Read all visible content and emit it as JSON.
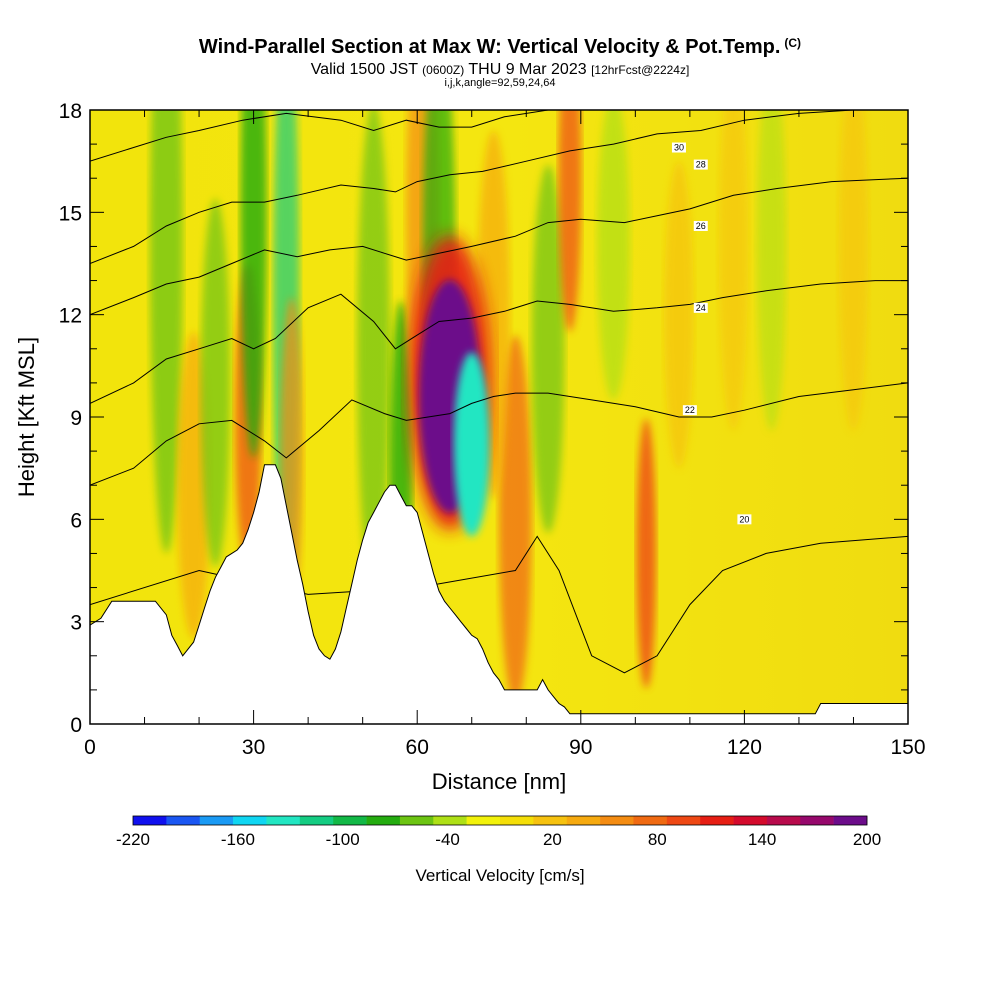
{
  "header": {
    "title": "Wind-Parallel Section at Max W: Vertical Velocity & Pot.Temp.",
    "title_mark": "(C)",
    "valid_main_a": "Valid 1500 JST",
    "valid_small_a": "(0600Z)",
    "valid_main_b": "THU 9 Mar 2023",
    "valid_small_b": "[12hrFcst@2224z]",
    "indices": "i,j,k,angle=92,59,24,64"
  },
  "chart_data": {
    "type": "heatmap",
    "xlabel": "Distance [nm]",
    "ylabel": "Height [Kft MSL]",
    "xlim": [
      0,
      150
    ],
    "ylim": [
      0,
      18
    ],
    "xticks": [
      0,
      30,
      60,
      90,
      120,
      150
    ],
    "yticks": [
      0,
      3,
      6,
      9,
      12,
      15,
      18
    ],
    "grid": false,
    "colorbar": {
      "label": "Vertical Velocity [cm/s]",
      "range": [
        -220,
        200
      ],
      "tick_labels": [
        "-220",
        "-160",
        "-100",
        "-40",
        "20",
        "80",
        "140",
        "200"
      ],
      "colors": [
        "#1010ee",
        "#1a56f2",
        "#1a9af4",
        "#10d6f2",
        "#22e6c2",
        "#14cc82",
        "#12b846",
        "#24ac10",
        "#6cc412",
        "#aee016",
        "#f2f20a",
        "#f4de08",
        "#f6c210",
        "#f6aa10",
        "#f48c12",
        "#f06a12",
        "#ee4814",
        "#e61e14",
        "#d40a2c",
        "#b80a4c",
        "#96086c",
        "#6c0c8a"
      ]
    },
    "terrain": [
      [
        0,
        2.9
      ],
      [
        2,
        3.1
      ],
      [
        4,
        3.6
      ],
      [
        8,
        3.6
      ],
      [
        12,
        3.6
      ],
      [
        14,
        3.2
      ],
      [
        15,
        2.6
      ],
      [
        16,
        2.3
      ],
      [
        17,
        2.0
      ],
      [
        19,
        2.4
      ],
      [
        20,
        2.9
      ],
      [
        21,
        3.4
      ],
      [
        22,
        3.9
      ],
      [
        23,
        4.3
      ],
      [
        24,
        4.6
      ],
      [
        25,
        4.9
      ],
      [
        27,
        5.1
      ],
      [
        28,
        5.3
      ],
      [
        29,
        5.7
      ],
      [
        30,
        6.2
      ],
      [
        31,
        6.8
      ],
      [
        32,
        7.6
      ],
      [
        34,
        7.6
      ],
      [
        35,
        7.2
      ],
      [
        36,
        6.4
      ],
      [
        37,
        5.6
      ],
      [
        38,
        4.8
      ],
      [
        39,
        4.1
      ],
      [
        40,
        3.3
      ],
      [
        41,
        2.6
      ],
      [
        42,
        2.2
      ],
      [
        43,
        2.0
      ],
      [
        44,
        1.9
      ],
      [
        45,
        2.2
      ],
      [
        46,
        2.7
      ],
      [
        47,
        3.4
      ],
      [
        48,
        4.1
      ],
      [
        49,
        4.8
      ],
      [
        50,
        5.4
      ],
      [
        51,
        5.9
      ],
      [
        52,
        6.2
      ],
      [
        53,
        6.5
      ],
      [
        54,
        6.8
      ],
      [
        55,
        7.0
      ],
      [
        56,
        7.0
      ],
      [
        57,
        6.7
      ],
      [
        58,
        6.4
      ],
      [
        59,
        6.4
      ],
      [
        60,
        6.2
      ],
      [
        61,
        5.6
      ],
      [
        62,
        5.0
      ],
      [
        63,
        4.4
      ],
      [
        64,
        3.9
      ],
      [
        65,
        3.6
      ],
      [
        66,
        3.4
      ],
      [
        67,
        3.2
      ],
      [
        68,
        3.0
      ],
      [
        69,
        2.8
      ],
      [
        70,
        2.6
      ],
      [
        71,
        2.5
      ],
      [
        72,
        2.2
      ],
      [
        73,
        1.8
      ],
      [
        74,
        1.5
      ],
      [
        75,
        1.3
      ],
      [
        76,
        1.0
      ],
      [
        80,
        1.0
      ],
      [
        82,
        1.0
      ],
      [
        83,
        1.3
      ],
      [
        84,
        1.0
      ],
      [
        85,
        0.8
      ],
      [
        86,
        0.6
      ],
      [
        87,
        0.5
      ],
      [
        88,
        0.3
      ],
      [
        100,
        0.3
      ],
      [
        133,
        0.3
      ],
      [
        134,
        0.6
      ],
      [
        150,
        0.6
      ]
    ],
    "isentropes": [
      {
        "label": "20",
        "pts": [
          [
            0,
            3.5
          ],
          [
            20,
            4.5
          ],
          [
            40,
            3.8
          ],
          [
            60,
            4.0
          ],
          [
            78,
            4.5
          ],
          [
            82,
            5.5
          ],
          [
            86,
            4.5
          ],
          [
            92,
            2.0
          ],
          [
            98,
            1.5
          ],
          [
            104,
            2.0
          ],
          [
            110,
            3.5
          ],
          [
            116,
            4.5
          ],
          [
            124,
            5.0
          ],
          [
            134,
            5.3
          ],
          [
            150,
            5.5
          ]
        ],
        "label_at": [
          120,
          6.0
        ]
      },
      {
        "label": "22",
        "pts": [
          [
            0,
            7.0
          ],
          [
            8,
            7.5
          ],
          [
            14,
            8.3
          ],
          [
            20,
            8.8
          ],
          [
            26,
            8.9
          ],
          [
            32,
            8.3
          ],
          [
            36,
            7.8
          ],
          [
            42,
            8.6
          ],
          [
            48,
            9.5
          ],
          [
            54,
            9.1
          ],
          [
            58,
            8.9
          ],
          [
            62,
            9.0
          ],
          [
            66,
            9.1
          ],
          [
            70,
            9.4
          ],
          [
            74,
            9.6
          ],
          [
            78,
            9.7
          ],
          [
            84,
            9.7
          ],
          [
            92,
            9.5
          ],
          [
            100,
            9.3
          ],
          [
            108,
            9.0
          ],
          [
            114,
            9.0
          ],
          [
            120,
            9.2
          ],
          [
            130,
            9.6
          ],
          [
            140,
            9.8
          ],
          [
            150,
            10.0
          ]
        ],
        "label_at": [
          110,
          9.2
        ]
      },
      {
        "label": "24",
        "pts": [
          [
            0,
            9.4
          ],
          [
            8,
            10.0
          ],
          [
            14,
            10.7
          ],
          [
            20,
            11.0
          ],
          [
            26,
            11.3
          ],
          [
            30,
            11.0
          ],
          [
            34,
            11.3
          ],
          [
            40,
            12.2
          ],
          [
            46,
            12.6
          ],
          [
            52,
            11.8
          ],
          [
            56,
            11.0
          ],
          [
            60,
            11.4
          ],
          [
            64,
            11.8
          ],
          [
            70,
            11.9
          ],
          [
            76,
            12.1
          ],
          [
            82,
            12.4
          ],
          [
            88,
            12.3
          ],
          [
            96,
            12.1
          ],
          [
            104,
            12.2
          ],
          [
            110,
            12.3
          ],
          [
            116,
            12.5
          ],
          [
            124,
            12.7
          ],
          [
            134,
            12.9
          ],
          [
            144,
            13.0
          ],
          [
            150,
            13.0
          ]
        ],
        "label_at": [
          112,
          12.2
        ]
      },
      {
        "label": "26",
        "pts": [
          [
            0,
            12.0
          ],
          [
            8,
            12.5
          ],
          [
            14,
            12.9
          ],
          [
            20,
            13.1
          ],
          [
            26,
            13.5
          ],
          [
            32,
            13.9
          ],
          [
            38,
            13.7
          ],
          [
            44,
            13.9
          ],
          [
            50,
            14.0
          ],
          [
            54,
            13.8
          ],
          [
            58,
            13.6
          ],
          [
            64,
            13.8
          ],
          [
            70,
            14.0
          ],
          [
            78,
            14.3
          ],
          [
            84,
            14.7
          ],
          [
            90,
            14.8
          ],
          [
            98,
            14.7
          ],
          [
            104,
            14.9
          ],
          [
            110,
            15.1
          ],
          [
            118,
            15.5
          ],
          [
            126,
            15.7
          ],
          [
            136,
            15.9
          ],
          [
            150,
            16.0
          ]
        ],
        "label_at": [
          112,
          14.6
        ]
      },
      {
        "label": "28",
        "pts": [
          [
            0,
            13.5
          ],
          [
            8,
            14.0
          ],
          [
            14,
            14.6
          ],
          [
            20,
            15.0
          ],
          [
            26,
            15.3
          ],
          [
            32,
            15.3
          ],
          [
            38,
            15.5
          ],
          [
            46,
            15.8
          ],
          [
            52,
            15.7
          ],
          [
            56,
            15.6
          ],
          [
            60,
            15.9
          ],
          [
            66,
            16.1
          ],
          [
            72,
            16.2
          ],
          [
            80,
            16.5
          ],
          [
            88,
            16.8
          ],
          [
            96,
            17.0
          ],
          [
            104,
            17.3
          ],
          [
            112,
            17.4
          ],
          [
            120,
            17.7
          ],
          [
            130,
            17.9
          ],
          [
            140,
            18.0
          ]
        ],
        "label_at": [
          112,
          16.4
        ]
      },
      {
        "label": "30",
        "pts": [
          [
            0,
            16.5
          ],
          [
            8,
            16.9
          ],
          [
            14,
            17.2
          ],
          [
            20,
            17.4
          ],
          [
            28,
            17.7
          ],
          [
            36,
            17.9
          ],
          [
            46,
            17.7
          ],
          [
            52,
            17.4
          ],
          [
            58,
            17.7
          ],
          [
            64,
            17.5
          ],
          [
            70,
            17.5
          ],
          [
            76,
            17.8
          ],
          [
            84,
            18.0
          ]
        ],
        "label_at": [
          108,
          16.9
        ]
      }
    ],
    "velocity_features": [
      {
        "x": 66,
        "y": 9.6,
        "w": 0.038,
        "h": 0.19,
        "color": "#6c0c8a"
      },
      {
        "x": 70,
        "y": 8.2,
        "w": 0.022,
        "h": 0.15,
        "color": "#22e6c2"
      }
    ]
  }
}
